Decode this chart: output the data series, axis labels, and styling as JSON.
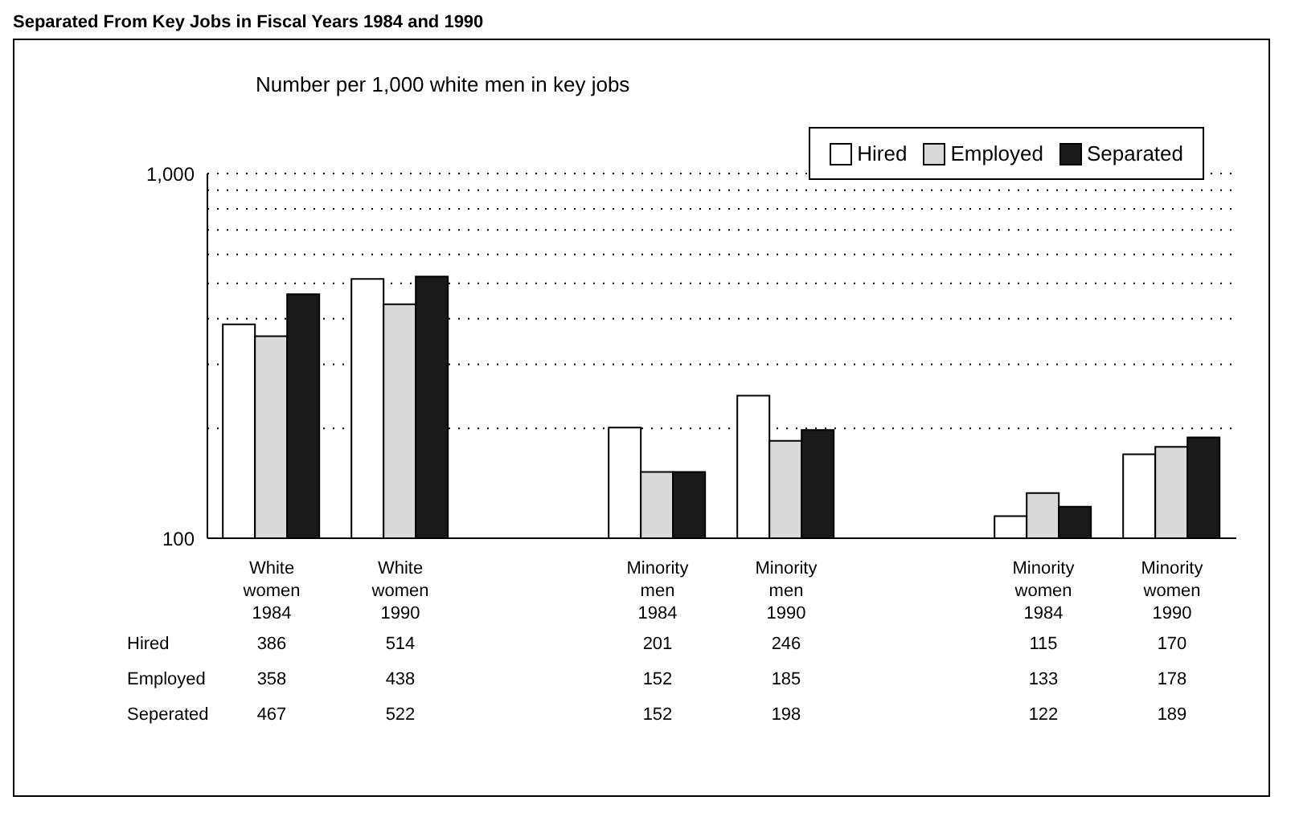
{
  "chart_data": {
    "type": "bar",
    "title": "Separated From Key Jobs in Fiscal Years 1984 and 1990",
    "ylabel": "Number per 1,000 white men in key jobs",
    "categories": [
      "White women 1984",
      "White women 1990",
      null,
      "Minority men 1984",
      "Minority men 1990",
      null,
      "Minority women 1984",
      "Minority women 1990"
    ],
    "series": [
      {
        "name": "Hired",
        "color": "#ffffff",
        "values": [
          386,
          514,
          null,
          201,
          246,
          null,
          115,
          170
        ]
      },
      {
        "name": "Employed",
        "color": "#d9d9d9",
        "values": [
          358,
          438,
          null,
          152,
          185,
          null,
          133,
          178
        ]
      },
      {
        "name": "Separated",
        "color": "#1a1a1a",
        "values": [
          467,
          522,
          null,
          152,
          198,
          null,
          122,
          189
        ]
      }
    ],
    "annotations": [
      "Hired",
      "Employed",
      "Seperated"
    ],
    "log": "y",
    "ylim": [
      100,
      1000
    ],
    "yticks": [
      100,
      {
        "value": 200,
        "label": null
      },
      {
        "value": 300,
        "label": null
      },
      {
        "value": 400,
        "label": null
      },
      {
        "value": 500,
        "label": null
      },
      {
        "value": 600,
        "label": null
      },
      {
        "value": 700,
        "label": null
      },
      {
        "value": 800,
        "label": null
      },
      {
        "value": 900,
        "label": null
      },
      {
        "value": 1000,
        "label": "1,000"
      }
    ],
    "grid": "y",
    "legend": "top right",
    "data_labels": true
  }
}
